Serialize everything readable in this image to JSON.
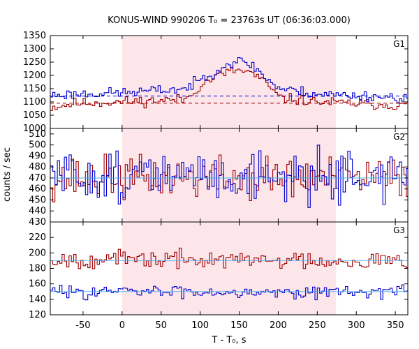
{
  "chart_data": {
    "type": "line",
    "title": "KONUS-WIND 990206 T₀ = 23763s UT (06:36:03.000)",
    "xlabel": "T - T₀, s",
    "ylabel": "counts / sec",
    "xlim": [
      -92,
      366
    ],
    "xticks": [
      -50,
      0,
      50,
      100,
      150,
      200,
      250,
      300,
      350
    ],
    "shaded_interval": [
      0,
      274
    ],
    "colors": {
      "red": "#a00000",
      "blue": "#0000cc",
      "cyan": "#44aaee",
      "shade": "#fde6ea"
    },
    "grid": false,
    "panels": [
      {
        "label": "G1",
        "ylim": [
          1000,
          1350
        ],
        "yticks": [
          1000,
          1050,
          1100,
          1150,
          1200,
          1250,
          1300,
          1350
        ],
        "background": {
          "red": 1095,
          "blue": 1122
        },
        "series": [
          {
            "color": "red",
            "profile": [
              [
                -92,
                1080
              ],
              [
                -60,
                1095
              ],
              [
                0,
                1100
              ],
              [
                80,
                1110
              ],
              [
                100,
                1165
              ],
              [
                125,
                1205
              ],
              [
                145,
                1220
              ],
              [
                165,
                1210
              ],
              [
                185,
                1165
              ],
              [
                200,
                1115
              ],
              [
                250,
                1100
              ],
              [
                366,
                1085
              ]
            ],
            "seed": 11,
            "noise": 12
          },
          {
            "color": "blue",
            "profile": [
              [
                -92,
                1125
              ],
              [
                -60,
                1130
              ],
              [
                0,
                1135
              ],
              [
                80,
                1150
              ],
              [
                100,
                1185
              ],
              [
                125,
                1230
              ],
              [
                145,
                1255
              ],
              [
                165,
                1240
              ],
              [
                185,
                1185
              ],
              [
                200,
                1150
              ],
              [
                250,
                1130
              ],
              [
                366,
                1115
              ]
            ],
            "seed": 23,
            "noise": 12
          }
        ]
      },
      {
        "label": "G2",
        "ylim": [
          430,
          515
        ],
        "yticks": [
          430,
          440,
          450,
          460,
          470,
          480,
          490,
          500,
          510
        ],
        "background": {
          "red": 470,
          "blue": 470
        },
        "series": [
          {
            "color": "red",
            "profile": [
              [
                -92,
                470
              ],
              [
                366,
                470
              ]
            ],
            "seed": 37,
            "noise": 12
          },
          {
            "color": "blue",
            "profile": [
              [
                -92,
                472
              ],
              [
                366,
                472
              ]
            ],
            "seed": 51,
            "noise": 14
          }
        ]
      },
      {
        "label": "G3",
        "ylim": [
          120,
          240
        ],
        "yticks": [
          120,
          140,
          160,
          180,
          200,
          220
        ],
        "background": {
          "red": 190,
          "blue": 150
        },
        "series": [
          {
            "color": "red",
            "profile": [
              [
                -92,
                192
              ],
              [
                366,
                190
              ]
            ],
            "seed": 67,
            "noise": 7
          },
          {
            "color": "blue",
            "profile": [
              [
                -92,
                150
              ],
              [
                366,
                150
              ]
            ],
            "seed": 83,
            "noise": 5
          }
        ]
      }
    ]
  }
}
